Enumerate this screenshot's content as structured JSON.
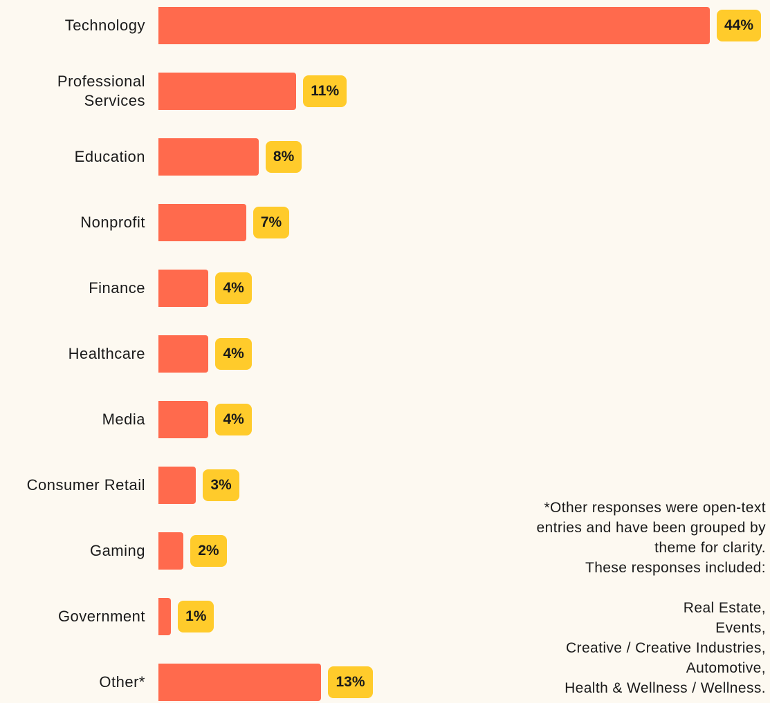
{
  "colors": {
    "bar": "#ff6a4d",
    "value_badge": "#ffcb2b",
    "background": "#fdf9f1",
    "text": "#1a1a1a"
  },
  "chart_data": {
    "type": "bar",
    "orientation": "horizontal",
    "categories": [
      "Technology",
      "Professional Services",
      "Education",
      "Nonprofit",
      "Finance",
      "Healthcare",
      "Media",
      "Consumer Retail",
      "Gaming",
      "Government",
      "Other*"
    ],
    "values": [
      44,
      11,
      8,
      7,
      4,
      4,
      4,
      3,
      2,
      1,
      13
    ],
    "value_labels": [
      "44%",
      "11%",
      "8%",
      "7%",
      "4%",
      "4%",
      "4%",
      "3%",
      "2%",
      "1%",
      "13%"
    ],
    "unit": "%",
    "xlim": [
      0,
      44
    ],
    "grid": false,
    "title": "",
    "xlabel": "",
    "ylabel": ""
  },
  "footnote": {
    "lines": [
      "*Other responses were open-text",
      "entries and have been grouped by",
      "theme for clarity.",
      "These responses included:",
      "",
      "Real Estate,",
      "Events,",
      "Creative / Creative Industries,",
      "Automotive,",
      "Health & Wellness / Wellness."
    ]
  }
}
